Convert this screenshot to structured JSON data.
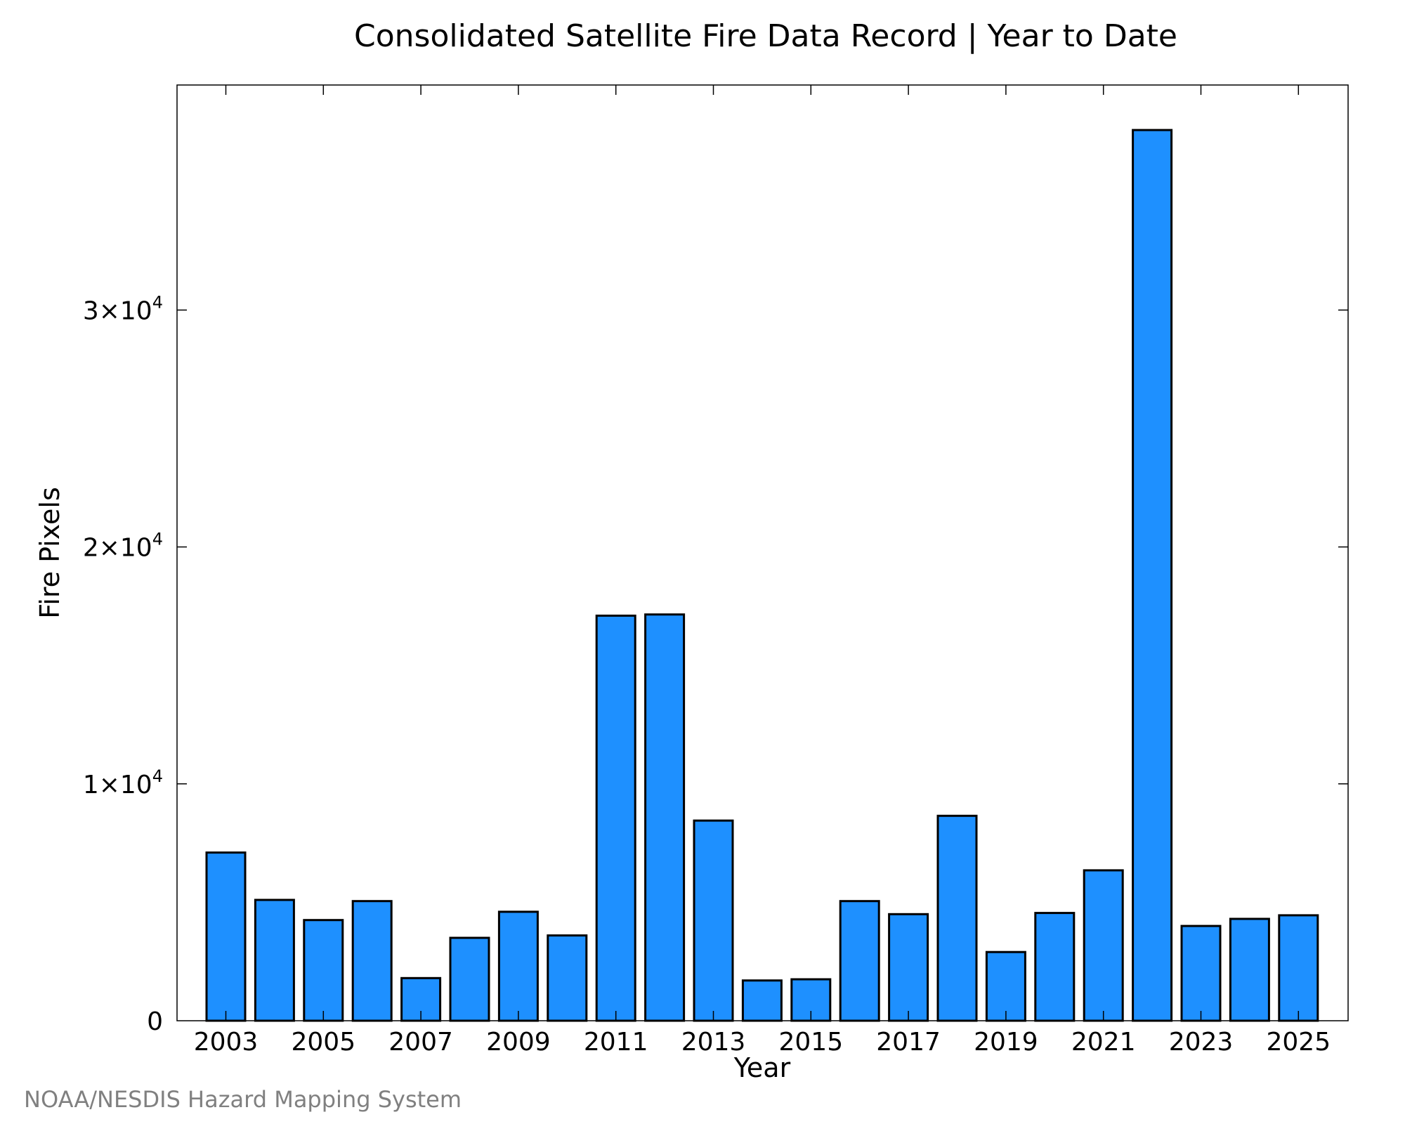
{
  "chart_data": {
    "type": "bar",
    "title": "Consolidated Satellite Fire Data Record | Year to Date",
    "xlabel": "Year",
    "ylabel": "Fire Pixels",
    "categories": [
      "2003",
      "2004",
      "2005",
      "2006",
      "2007",
      "2008",
      "2009",
      "2010",
      "2011",
      "2012",
      "2013",
      "2014",
      "2015",
      "2016",
      "2017",
      "2018",
      "2019",
      "2020",
      "2021",
      "2022",
      "2023",
      "2024",
      "2025"
    ],
    "values": [
      7100,
      5100,
      4250,
      5050,
      1800,
      3500,
      4600,
      3600,
      17100,
      17150,
      8450,
      1700,
      1750,
      5050,
      4500,
      8650,
      2900,
      4550,
      6350,
      37600,
      4000,
      4300,
      4450
    ],
    "x_tick_labels": [
      "2003",
      "2005",
      "2007",
      "2009",
      "2011",
      "2013",
      "2015",
      "2017",
      "2019",
      "2021",
      "2023",
      "2025"
    ],
    "y_ticks": [
      {
        "value": 0,
        "mantissa": "0",
        "exponent": ""
      },
      {
        "value": 10000,
        "mantissa": "1×10",
        "exponent": "4"
      },
      {
        "value": 20000,
        "mantissa": "2×10",
        "exponent": "4"
      },
      {
        "value": 30000,
        "mantissa": "3×10",
        "exponent": "4"
      }
    ],
    "ylim": [
      0,
      39500
    ],
    "bar_color": "#1e90ff",
    "grid": false,
    "legend": "none"
  },
  "footer": {
    "credit": "NOAA/NESDIS Hazard Mapping System"
  }
}
